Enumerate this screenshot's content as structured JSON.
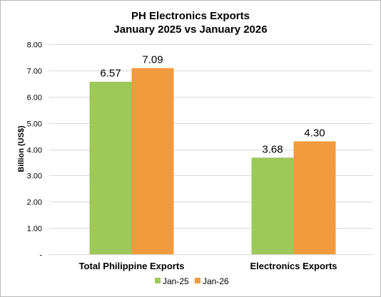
{
  "chart_data": {
    "type": "bar",
    "title": "PH Electronics Exports",
    "subtitle": "January 2025 vs January 2026",
    "xlabel": "",
    "ylabel": "Billion (US$)",
    "categories": [
      "Total Philippine Exports",
      "Electronics Exports"
    ],
    "series": [
      {
        "name": "Jan-25",
        "values": [
          6.57,
          3.68
        ],
        "labels": [
          "6.57",
          "3.68"
        ],
        "color": "#9dc85a"
      },
      {
        "name": "Jan-26",
        "values": [
          7.09,
          4.3
        ],
        "labels": [
          "7.09",
          "4.30"
        ],
        "color": "#f29b3e"
      }
    ],
    "ylim": [
      0,
      8
    ],
    "yticks": [
      {
        "value": 0,
        "label": "-"
      },
      {
        "value": 1,
        "label": "1.00"
      },
      {
        "value": 2,
        "label": "2.00"
      },
      {
        "value": 3,
        "label": "3.00"
      },
      {
        "value": 4,
        "label": "4.00"
      },
      {
        "value": 5,
        "label": "5.00"
      },
      {
        "value": 6,
        "label": "6.00"
      },
      {
        "value": 7,
        "label": "7.00"
      },
      {
        "value": 8,
        "label": "8.00"
      }
    ],
    "grid": true,
    "legend_position": "bottom"
  }
}
